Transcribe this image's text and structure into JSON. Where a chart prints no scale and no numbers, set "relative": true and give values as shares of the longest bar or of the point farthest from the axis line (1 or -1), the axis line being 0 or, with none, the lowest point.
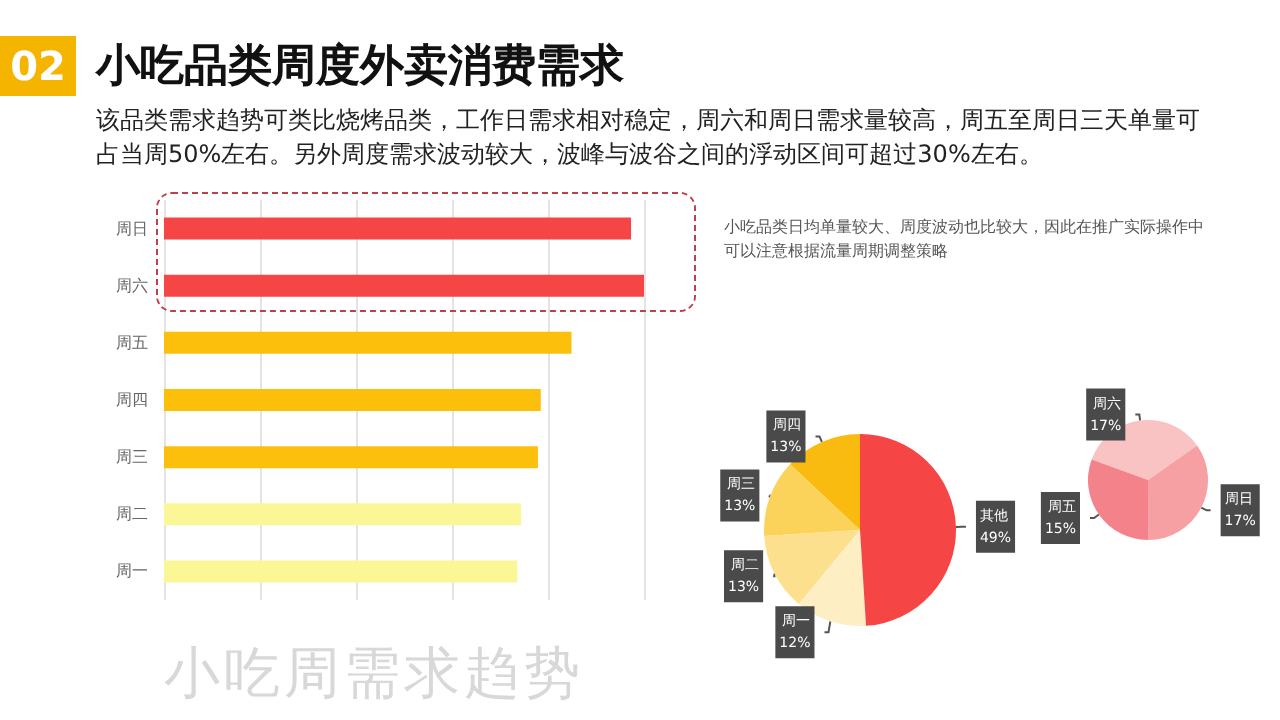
{
  "chart_data": [
    {
      "type": "bar",
      "orientation": "horizontal",
      "relative": true,
      "title": "小吃品类周度外卖消费需求",
      "subtitle": "该品类需求趋势可类比烧烤品类，工作日需求相对稳定，周六和周日需求量较高，周五至周日三天单量可占当周50%左右。另外周度需求波动较大，波峰与波谷之间的浮动区间可超过30%左右。",
      "annotations": [
        "02",
        "小吃周需求趋势"
      ],
      "categories": [
        "周日",
        "周六",
        "周五",
        "周四",
        "周三",
        "周二",
        "周一"
      ],
      "values": [
        0.973,
        1,
        0.849,
        0.785,
        0.779,
        0.744,
        0.736
      ],
      "colors": [
        "#f64545",
        "#f64545",
        "#fbbf0c",
        "#fbbf0c",
        "#fbbf0c",
        "#fcf796",
        "#fcf796"
      ],
      "grid": "x",
      "legend": false
    },
    {
      "type": "pie",
      "annotations": [
        "小吃品类日均单量较大、周度波动也比较大，因此在推广实际操作中可以注意根据流量周期调整策略"
      ],
      "categories": [
        "周四",
        "周三",
        "周二",
        "周一",
        "其他"
      ],
      "values": [
        13,
        13,
        13,
        12,
        49
      ],
      "value_labels": [
        "13%",
        "13%",
        "13%",
        "12%",
        "49%"
      ],
      "colors": [
        "#f9bb10",
        "#fbd35a",
        "#fce08e",
        "#fdeec4",
        "#f64545"
      ],
      "legend": false
    },
    {
      "type": "pie",
      "categories": [
        "周六",
        "周日",
        "周五"
      ],
      "values": [
        17,
        17,
        15
      ],
      "value_labels": [
        "17%",
        "17%",
        "15%"
      ],
      "colors": [
        "#f9c3c3",
        "#f7a0a3",
        "#f4828a"
      ],
      "legend": false
    }
  ]
}
